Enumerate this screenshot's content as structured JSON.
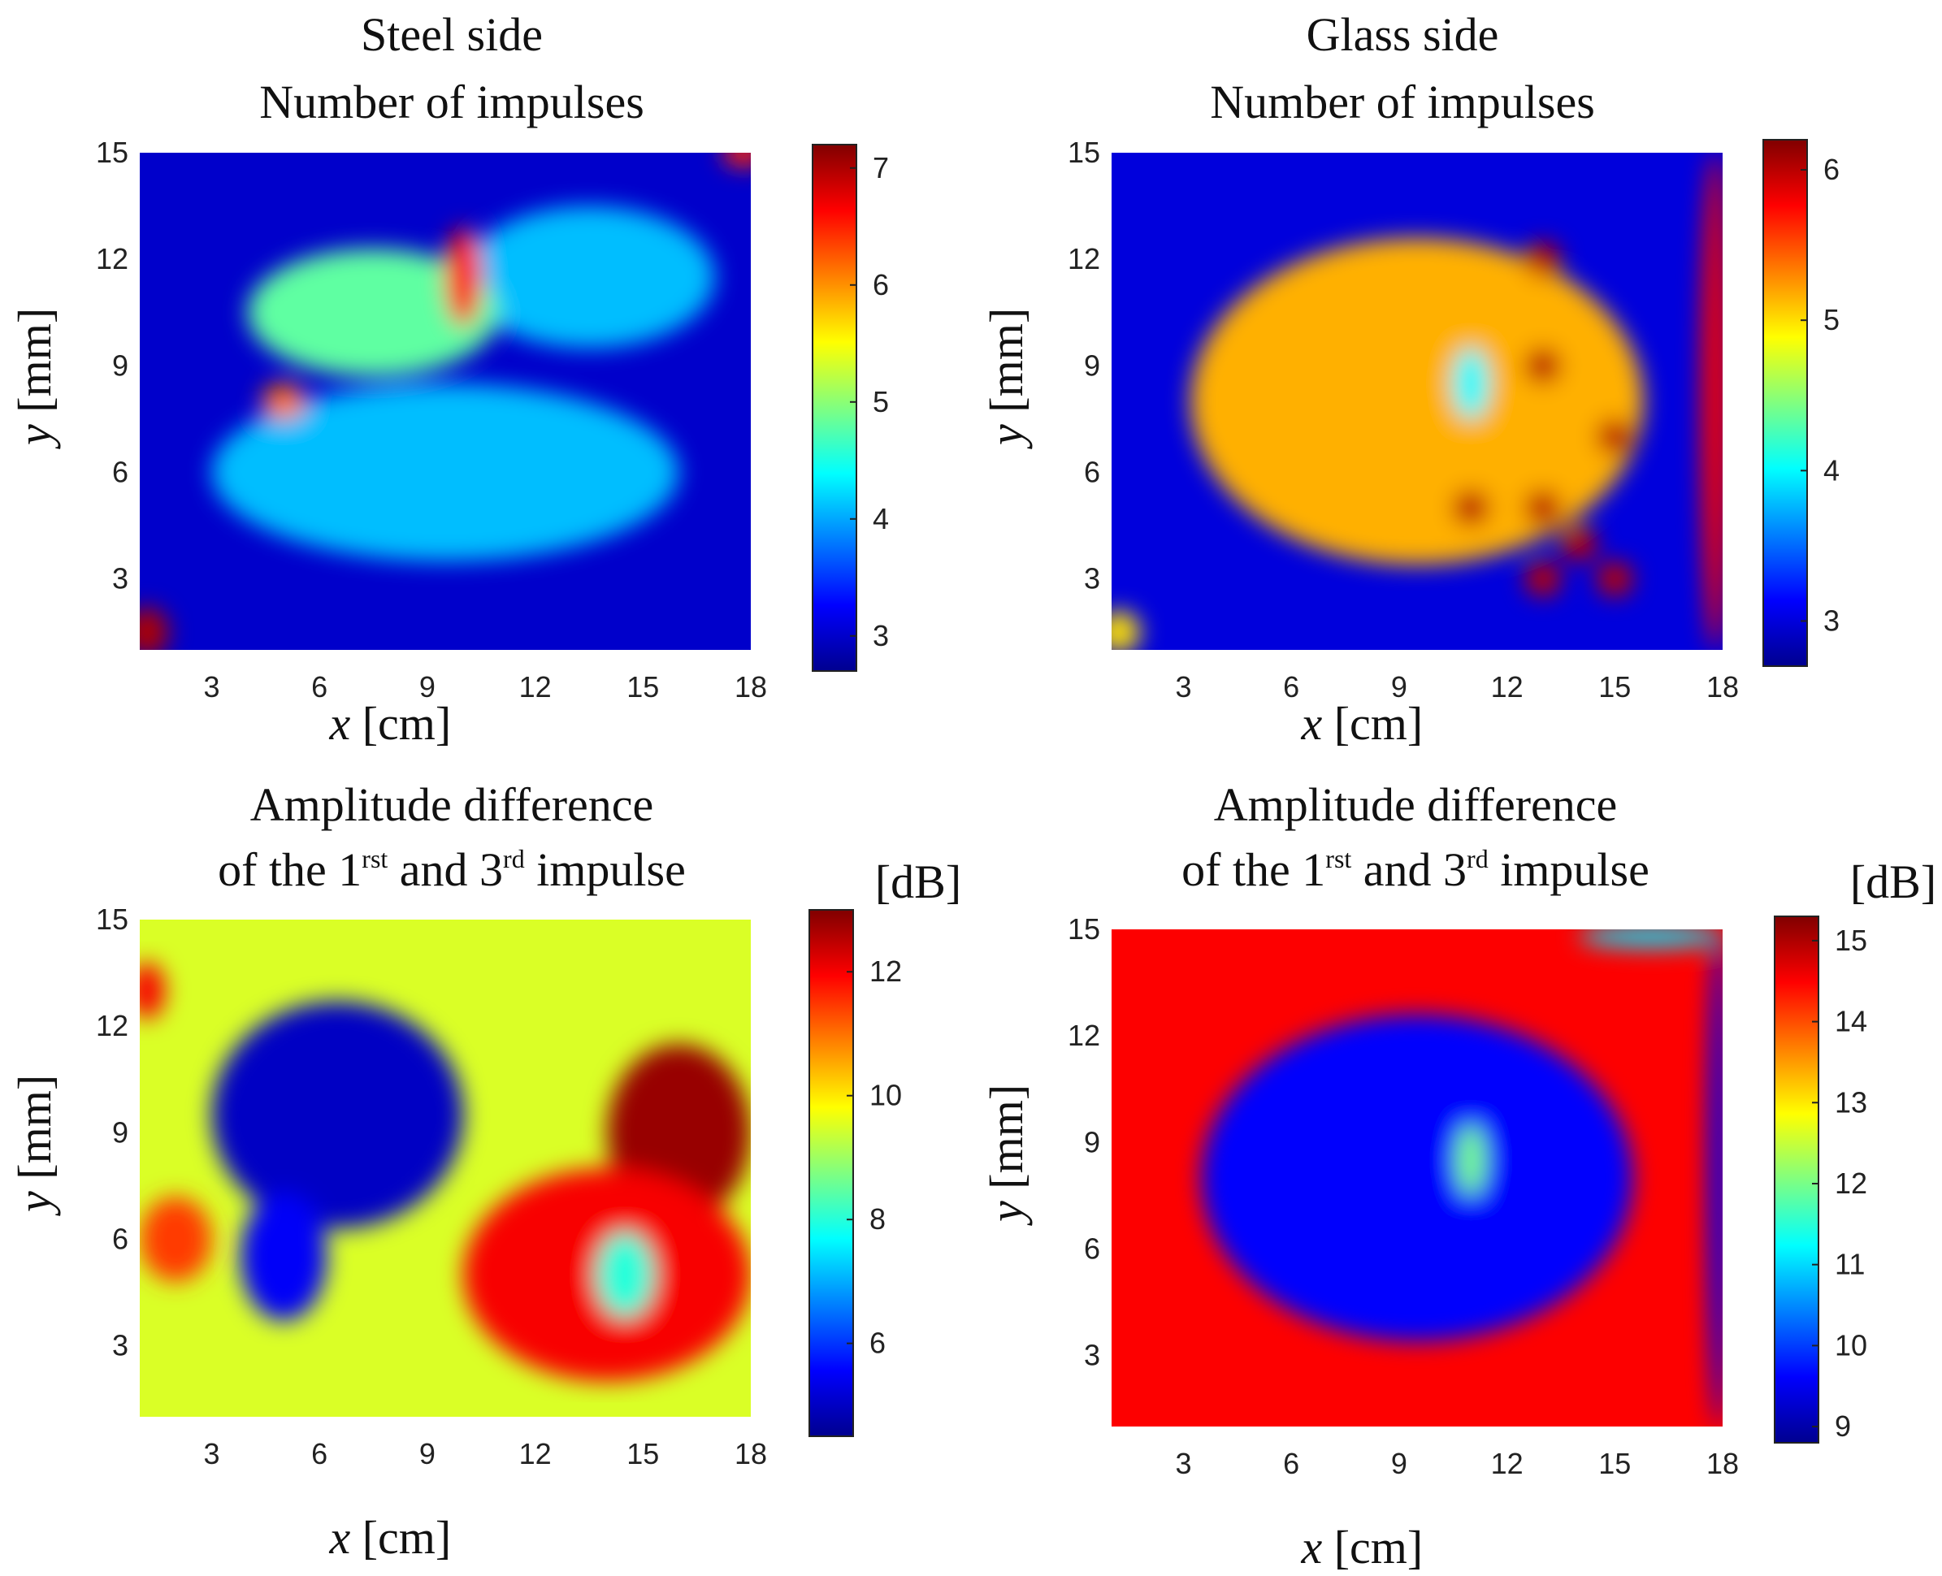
{
  "colors": {
    "jet": [
      "#00008f",
      "#0000ff",
      "#00a0ff",
      "#00ffff",
      "#80ff80",
      "#ffff00",
      "#ff9000",
      "#ff0000",
      "#800000"
    ]
  },
  "chart_data": [
    {
      "type": "heatmap",
      "title_lines": [
        "Steel side",
        "Number of impulses"
      ],
      "xlabel_var": "x",
      "xlabel_unit": "[cm]",
      "ylabel_var": "y",
      "ylabel_unit": "[mm]",
      "x_range": [
        1,
        18
      ],
      "y_range": [
        1,
        15
      ],
      "x_ticks": [
        3,
        6,
        9,
        12,
        15,
        18
      ],
      "y_ticks": [
        3,
        6,
        9,
        12,
        15
      ],
      "colorbar_range": [
        2.7,
        7.2
      ],
      "colorbar_ticks": [
        3,
        4,
        5,
        6,
        7
      ],
      "colorbar_unit": "",
      "background": 3.0,
      "features": [
        {
          "x": 9.5,
          "y": 6,
          "rx": 6.5,
          "ry": 2.5,
          "v": 4.0
        },
        {
          "x": 13.5,
          "y": 11.5,
          "rx": 3.5,
          "ry": 2.0,
          "v": 4.0
        },
        {
          "x": 7.5,
          "y": 10.5,
          "rx": 3.5,
          "ry": 1.8,
          "v": 4.8
        },
        {
          "x": 10,
          "y": 11.5,
          "rx": 0.5,
          "ry": 1.4,
          "v": 6.6
        },
        {
          "x": 5,
          "y": 8,
          "rx": 0.6,
          "ry": 0.5,
          "v": 6.2
        },
        {
          "x": 1.2,
          "y": 1.5,
          "rx": 0.6,
          "ry": 0.7,
          "v": 7.0
        },
        {
          "x": 17.8,
          "y": 15,
          "rx": 0.6,
          "ry": 0.4,
          "v": 6.5
        }
      ]
    },
    {
      "type": "heatmap",
      "title_lines": [
        "Glass side",
        "Number of impulses"
      ],
      "xlabel_var": "x",
      "xlabel_unit": "[cm]",
      "ylabel_var": "y",
      "ylabel_unit": "[mm]",
      "x_range": [
        1,
        18
      ],
      "y_range": [
        1,
        15
      ],
      "x_ticks": [
        3,
        6,
        9,
        12,
        15,
        18
      ],
      "y_ticks": [
        3,
        6,
        9,
        12,
        15
      ],
      "colorbar_range": [
        2.7,
        6.2
      ],
      "colorbar_ticks": [
        3,
        4,
        5,
        6
      ],
      "colorbar_unit": "",
      "background": 3.0,
      "features": [
        {
          "x": 9.5,
          "y": 8,
          "rx": 6.3,
          "ry": 4.6,
          "v": 5.2
        },
        {
          "x": 11,
          "y": 8.5,
          "rx": 0.5,
          "ry": 1.0,
          "v": 4.0
        },
        {
          "x": 13,
          "y": 12,
          "rx": 0.5,
          "ry": 0.5,
          "v": 6.0
        },
        {
          "x": 13,
          "y": 9,
          "rx": 0.5,
          "ry": 0.5,
          "v": 6.0
        },
        {
          "x": 15,
          "y": 7,
          "rx": 0.5,
          "ry": 0.5,
          "v": 6.0
        },
        {
          "x": 11,
          "y": 5,
          "rx": 0.5,
          "ry": 0.5,
          "v": 6.0
        },
        {
          "x": 13,
          "y": 5,
          "rx": 0.5,
          "ry": 0.5,
          "v": 6.0
        },
        {
          "x": 14,
          "y": 4,
          "rx": 0.5,
          "ry": 0.5,
          "v": 6.0
        },
        {
          "x": 15,
          "y": 3,
          "rx": 0.5,
          "ry": 0.5,
          "v": 6.0
        },
        {
          "x": 13,
          "y": 3,
          "rx": 0.5,
          "ry": 0.5,
          "v": 6.0
        },
        {
          "x": 17.8,
          "y": 8,
          "rx": 0.4,
          "ry": 7.0,
          "v": 5.8
        },
        {
          "x": 1.2,
          "y": 1.5,
          "rx": 0.6,
          "ry": 0.6,
          "v": 5.0
        }
      ]
    },
    {
      "type": "heatmap",
      "title_lines": [
        "Amplitude difference",
        "of the  1rst and 3rd impulse"
      ],
      "title_line2_parts": [
        "of the  1",
        "rst",
        " and 3",
        "rd",
        " impulse"
      ],
      "xlabel_var": "x",
      "xlabel_unit": "[cm]",
      "ylabel_var": "y",
      "ylabel_unit": "[mm]",
      "x_range": [
        1,
        18
      ],
      "y_range": [
        1,
        15
      ],
      "x_ticks": [
        3,
        6,
        9,
        12,
        15,
        18
      ],
      "y_ticks": [
        3,
        6,
        9,
        12,
        15
      ],
      "colorbar_range": [
        4.5,
        13
      ],
      "colorbar_ticks": [
        6,
        8,
        10,
        12
      ],
      "colorbar_unit": "[dB]",
      "background": 9.5,
      "features": [
        {
          "x": 6.5,
          "y": 9.5,
          "rx": 3.5,
          "ry": 3.2,
          "v": 5.0
        },
        {
          "x": 5,
          "y": 5.5,
          "rx": 1.2,
          "ry": 1.8,
          "v": 5.5
        },
        {
          "x": 16,
          "y": 9,
          "rx": 2.0,
          "ry": 2.5,
          "v": 12.8
        },
        {
          "x": 14,
          "y": 5,
          "rx": 4.0,
          "ry": 3.0,
          "v": 12.0
        },
        {
          "x": 14.5,
          "y": 5,
          "rx": 0.8,
          "ry": 1.2,
          "v": 8.0
        },
        {
          "x": 1.2,
          "y": 13,
          "rx": 0.5,
          "ry": 0.8,
          "v": 12.0
        },
        {
          "x": 2,
          "y": 6,
          "rx": 1.0,
          "ry": 1.2,
          "v": 11.5
        }
      ]
    },
    {
      "type": "heatmap",
      "title_lines": [
        "Amplitude difference",
        "of the  1rst and 3rd impulse"
      ],
      "title_line2_parts": [
        "of the  1",
        "rst",
        " and 3",
        "rd",
        " impulse"
      ],
      "xlabel_var": "x",
      "xlabel_unit": "[cm]",
      "ylabel_var": "y",
      "ylabel_unit": "[mm]",
      "x_range": [
        1,
        18
      ],
      "y_range": [
        1,
        15
      ],
      "x_ticks": [
        3,
        6,
        9,
        12,
        15,
        18
      ],
      "y_ticks": [
        3,
        6,
        9,
        12,
        15
      ],
      "colorbar_range": [
        8.8,
        15.3
      ],
      "colorbar_ticks": [
        9,
        10,
        11,
        12,
        13,
        14,
        15
      ],
      "colorbar_unit": "[dB]",
      "background": 14.5,
      "features": [
        {
          "x": 9.5,
          "y": 8,
          "rx": 6.0,
          "ry": 4.6,
          "v": 9.6
        },
        {
          "x": 11,
          "y": 8.5,
          "rx": 0.4,
          "ry": 1.0,
          "v": 12.0
        },
        {
          "x": 17.9,
          "y": 8,
          "rx": 0.3,
          "ry": 7.0,
          "v": 9.5
        },
        {
          "x": 16,
          "y": 14.8,
          "rx": 2.0,
          "ry": 0.3,
          "v": 11.0
        }
      ]
    }
  ]
}
